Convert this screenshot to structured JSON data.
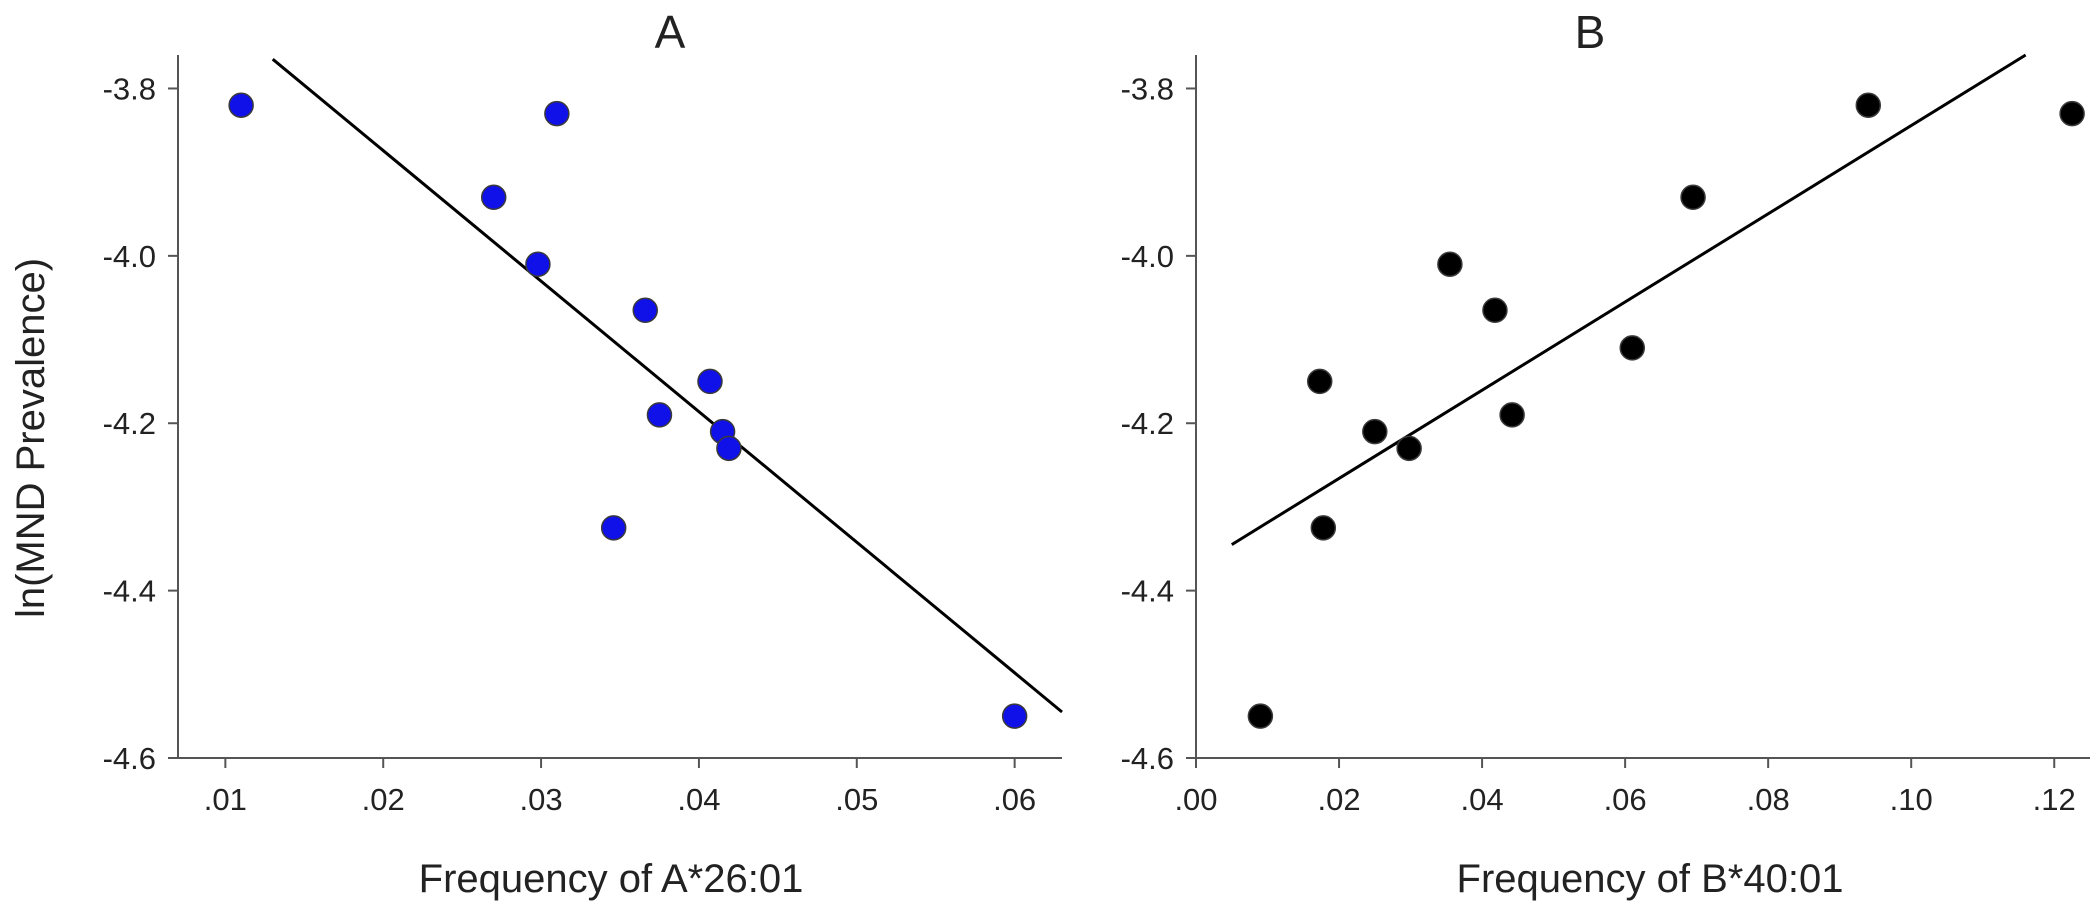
{
  "chart_data": [
    {
      "panel": "A",
      "type": "scatter",
      "title": "A",
      "xlabel": "Frequency of A*26:01",
      "ylabel": "ln(MND Prevalence)",
      "xlim": [
        0.007,
        0.063
      ],
      "ylim": [
        -4.6,
        -3.76
      ],
      "xticks": [
        0.01,
        0.02,
        0.03,
        0.04,
        0.05,
        0.06
      ],
      "xtick_labels": [
        ".01",
        ".02",
        ".03",
        ".04",
        ".05",
        ".06"
      ],
      "yticks": [
        -3.8,
        -4.0,
        -4.2,
        -4.4,
        -4.6
      ],
      "ytick_labels": [
        "-3.8",
        "-4.0",
        "-4.2",
        "-4.4",
        "-4.6"
      ],
      "marker_color": "#1010e8",
      "fit_line": {
        "x": [
          0.013,
          0.063
        ],
        "y": [
          -3.765,
          -4.545
        ]
      },
      "x": [
        0.011,
        0.031,
        0.027,
        0.0298,
        0.0366,
        0.0407,
        0.0375,
        0.0415,
        0.0419,
        0.0346,
        0.06
      ],
      "y": [
        -3.82,
        -3.83,
        -3.93,
        -4.01,
        -4.065,
        -4.15,
        -4.19,
        -4.21,
        -4.23,
        -4.325,
        -4.55
      ]
    },
    {
      "panel": "B",
      "type": "scatter",
      "title": "B",
      "xlabel": "Frequency of B*40:01",
      "ylabel": "",
      "xlim": [
        0.0,
        0.125
      ],
      "ylim": [
        -4.6,
        -3.76
      ],
      "xticks": [
        0.0,
        0.02,
        0.04,
        0.06,
        0.08,
        0.1,
        0.12
      ],
      "xtick_labels": [
        ".00",
        ".02",
        ".04",
        ".06",
        ".08",
        ".10",
        ".12"
      ],
      "yticks": [
        -3.8,
        -4.0,
        -4.2,
        -4.4,
        -4.6
      ],
      "ytick_labels": [
        "-3.8",
        "-4.0",
        "-4.2",
        "-4.4",
        "-4.6"
      ],
      "marker_color": "#000000",
      "fit_line": {
        "x": [
          0.005,
          0.116
        ],
        "y": [
          -4.345,
          -3.76
        ]
      },
      "x": [
        0.009,
        0.0173,
        0.0178,
        0.025,
        0.0298,
        0.0355,
        0.0418,
        0.0442,
        0.061,
        0.0695,
        0.094,
        0.1225
      ],
      "y": [
        -4.55,
        -4.15,
        -4.325,
        -4.21,
        -4.23,
        -4.01,
        -4.065,
        -4.19,
        -4.11,
        -3.93,
        -3.82,
        -3.83
      ]
    }
  ]
}
